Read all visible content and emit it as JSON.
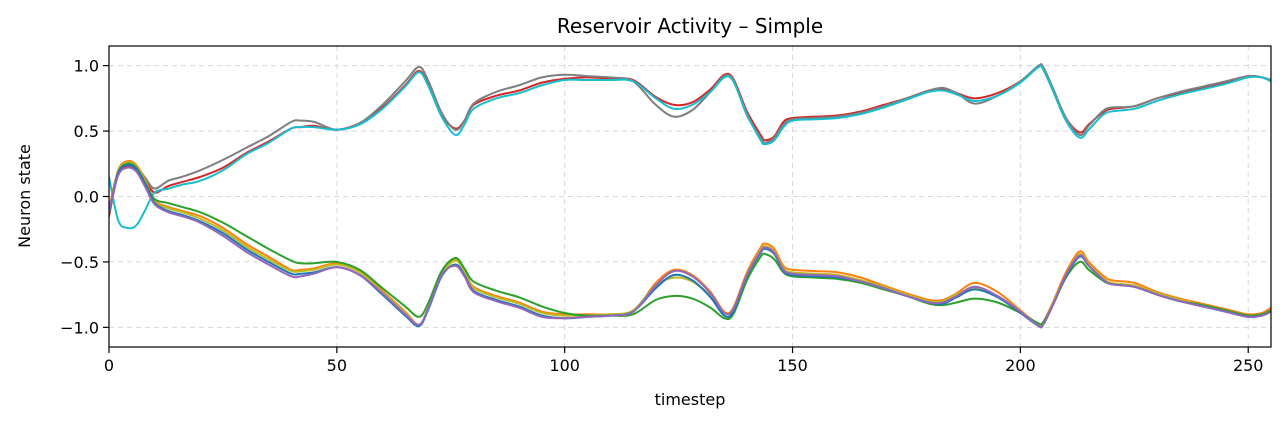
{
  "chart_data": {
    "type": "line",
    "title": "Reservoir Activity – Simple",
    "xlabel": "timestep",
    "ylabel": "Neuron state",
    "xlim": [
      0,
      255
    ],
    "ylim": [
      -1.15,
      1.15
    ],
    "xticks": [
      0,
      50,
      100,
      150,
      200,
      250
    ],
    "xtick_labels": [
      "0",
      "50",
      "100",
      "150",
      "200",
      "250"
    ],
    "yticks": [
      1.0,
      0.5,
      0.0,
      -0.5,
      -1.0
    ],
    "ytick_labels": [
      "1.0",
      "0.5",
      "0.0",
      "−0.5",
      "−1.0"
    ],
    "grid": true,
    "legend": "none",
    "x": [
      0,
      2,
      4,
      6,
      8,
      10,
      13,
      16,
      20,
      25,
      30,
      35,
      40,
      42,
      45,
      50,
      55,
      60,
      65,
      68,
      70,
      73,
      76,
      78,
      80,
      85,
      90,
      95,
      100,
      105,
      110,
      115,
      120,
      124,
      128,
      132,
      135,
      137,
      140,
      143,
      144,
      146,
      148,
      150,
      155,
      160,
      165,
      170,
      175,
      180,
      183,
      186,
      190,
      195,
      200,
      204,
      205,
      207,
      210,
      213,
      215,
      218,
      220,
      225,
      230,
      235,
      240,
      245,
      250,
      253,
      255
    ],
    "series": [
      {
        "color": "#d62728",
        "values": [
          -0.15,
          0.17,
          0.23,
          0.21,
          0.12,
          0.03,
          0.08,
          0.11,
          0.15,
          0.22,
          0.33,
          0.42,
          0.52,
          0.53,
          0.54,
          0.51,
          0.56,
          0.68,
          0.85,
          0.96,
          0.86,
          0.62,
          0.52,
          0.58,
          0.7,
          0.77,
          0.81,
          0.87,
          0.9,
          0.91,
          0.9,
          0.89,
          0.76,
          0.7,
          0.72,
          0.82,
          0.93,
          0.9,
          0.65,
          0.47,
          0.43,
          0.46,
          0.57,
          0.6,
          0.61,
          0.62,
          0.65,
          0.7,
          0.75,
          0.81,
          0.82,
          0.79,
          0.75,
          0.79,
          0.88,
          0.99,
          0.98,
          0.83,
          0.6,
          0.49,
          0.55,
          0.64,
          0.67,
          0.69,
          0.75,
          0.79,
          0.83,
          0.87,
          0.92,
          0.91,
          0.88
        ]
      },
      {
        "color": "#7f7f7f",
        "values": [
          -0.13,
          0.18,
          0.25,
          0.23,
          0.14,
          0.06,
          0.12,
          0.15,
          0.2,
          0.28,
          0.37,
          0.46,
          0.57,
          0.58,
          0.57,
          0.51,
          0.56,
          0.7,
          0.88,
          0.99,
          0.89,
          0.64,
          0.51,
          0.58,
          0.71,
          0.8,
          0.85,
          0.91,
          0.93,
          0.92,
          0.91,
          0.88,
          0.7,
          0.61,
          0.66,
          0.8,
          0.92,
          0.89,
          0.62,
          0.45,
          0.41,
          0.45,
          0.55,
          0.59,
          0.6,
          0.61,
          0.64,
          0.69,
          0.75,
          0.81,
          0.83,
          0.79,
          0.71,
          0.77,
          0.88,
          1.0,
          0.99,
          0.84,
          0.6,
          0.47,
          0.54,
          0.65,
          0.68,
          0.69,
          0.75,
          0.8,
          0.84,
          0.88,
          0.92,
          0.91,
          0.89
        ]
      },
      {
        "color": "#17becf",
        "values": [
          0.15,
          -0.18,
          -0.24,
          -0.22,
          -0.1,
          0.03,
          0.06,
          0.09,
          0.12,
          0.2,
          0.32,
          0.41,
          0.52,
          0.53,
          0.53,
          0.51,
          0.55,
          0.67,
          0.84,
          0.95,
          0.85,
          0.61,
          0.47,
          0.55,
          0.67,
          0.75,
          0.79,
          0.85,
          0.89,
          0.89,
          0.89,
          0.88,
          0.75,
          0.67,
          0.7,
          0.8,
          0.91,
          0.88,
          0.63,
          0.43,
          0.4,
          0.43,
          0.53,
          0.58,
          0.59,
          0.6,
          0.63,
          0.68,
          0.74,
          0.8,
          0.81,
          0.78,
          0.73,
          0.77,
          0.87,
          0.99,
          0.97,
          0.82,
          0.58,
          0.45,
          0.51,
          0.62,
          0.65,
          0.67,
          0.73,
          0.78,
          0.82,
          0.86,
          0.91,
          0.91,
          0.88
        ]
      },
      {
        "color": "#ff7f0e",
        "values": [
          -0.1,
          0.2,
          0.27,
          0.24,
          0.12,
          -0.03,
          -0.08,
          -0.11,
          -0.15,
          -0.24,
          -0.36,
          -0.46,
          -0.56,
          -0.56,
          -0.55,
          -0.51,
          -0.57,
          -0.72,
          -0.88,
          -0.98,
          -0.86,
          -0.6,
          -0.48,
          -0.57,
          -0.69,
          -0.76,
          -0.81,
          -0.88,
          -0.9,
          -0.9,
          -0.9,
          -0.88,
          -0.66,
          -0.56,
          -0.6,
          -0.73,
          -0.88,
          -0.85,
          -0.58,
          -0.39,
          -0.36,
          -0.4,
          -0.53,
          -0.56,
          -0.57,
          -0.58,
          -0.62,
          -0.68,
          -0.74,
          -0.79,
          -0.79,
          -0.74,
          -0.66,
          -0.73,
          -0.87,
          -0.98,
          -0.96,
          -0.82,
          -0.58,
          -0.42,
          -0.5,
          -0.6,
          -0.64,
          -0.66,
          -0.73,
          -0.78,
          -0.82,
          -0.86,
          -0.9,
          -0.89,
          -0.85
        ]
      },
      {
        "color": "#bcbd22",
        "values": [
          -0.11,
          0.19,
          0.26,
          0.23,
          0.11,
          -0.04,
          -0.09,
          -0.12,
          -0.17,
          -0.26,
          -0.38,
          -0.48,
          -0.57,
          -0.57,
          -0.56,
          -0.52,
          -0.58,
          -0.73,
          -0.89,
          -0.98,
          -0.86,
          -0.6,
          -0.49,
          -0.58,
          -0.7,
          -0.77,
          -0.82,
          -0.89,
          -0.91,
          -0.91,
          -0.9,
          -0.87,
          -0.68,
          -0.62,
          -0.65,
          -0.76,
          -0.89,
          -0.86,
          -0.6,
          -0.41,
          -0.38,
          -0.42,
          -0.55,
          -0.58,
          -0.59,
          -0.6,
          -0.64,
          -0.69,
          -0.75,
          -0.8,
          -0.8,
          -0.75,
          -0.7,
          -0.76,
          -0.88,
          -0.98,
          -0.97,
          -0.83,
          -0.6,
          -0.44,
          -0.52,
          -0.62,
          -0.66,
          -0.68,
          -0.74,
          -0.79,
          -0.83,
          -0.87,
          -0.91,
          -0.9,
          -0.87
        ]
      },
      {
        "color": "#2ca02c",
        "values": [
          -0.12,
          0.18,
          0.25,
          0.22,
          0.1,
          -0.02,
          -0.05,
          -0.08,
          -0.12,
          -0.2,
          -0.3,
          -0.4,
          -0.49,
          -0.51,
          -0.51,
          -0.5,
          -0.56,
          -0.7,
          -0.84,
          -0.92,
          -0.82,
          -0.57,
          -0.47,
          -0.55,
          -0.65,
          -0.72,
          -0.77,
          -0.84,
          -0.89,
          -0.91,
          -0.91,
          -0.9,
          -0.79,
          -0.76,
          -0.78,
          -0.85,
          -0.93,
          -0.9,
          -0.64,
          -0.46,
          -0.44,
          -0.48,
          -0.58,
          -0.61,
          -0.62,
          -0.63,
          -0.66,
          -0.71,
          -0.76,
          -0.82,
          -0.83,
          -0.81,
          -0.78,
          -0.81,
          -0.89,
          -0.97,
          -0.96,
          -0.84,
          -0.62,
          -0.5,
          -0.56,
          -0.64,
          -0.67,
          -0.69,
          -0.75,
          -0.8,
          -0.83,
          -0.87,
          -0.91,
          -0.9,
          -0.87
        ]
      },
      {
        "color": "#1f77b4",
        "values": [
          -0.12,
          0.18,
          0.24,
          0.21,
          0.09,
          -0.05,
          -0.11,
          -0.14,
          -0.19,
          -0.28,
          -0.4,
          -0.5,
          -0.59,
          -0.59,
          -0.58,
          -0.54,
          -0.6,
          -0.75,
          -0.91,
          -0.99,
          -0.87,
          -0.61,
          -0.52,
          -0.6,
          -0.72,
          -0.79,
          -0.84,
          -0.91,
          -0.93,
          -0.92,
          -0.91,
          -0.88,
          -0.7,
          -0.6,
          -0.64,
          -0.77,
          -0.91,
          -0.88,
          -0.61,
          -0.43,
          -0.4,
          -0.44,
          -0.57,
          -0.6,
          -0.61,
          -0.62,
          -0.65,
          -0.7,
          -0.76,
          -0.81,
          -0.82,
          -0.77,
          -0.71,
          -0.77,
          -0.89,
          -0.99,
          -0.98,
          -0.84,
          -0.61,
          -0.46,
          -0.53,
          -0.63,
          -0.67,
          -0.69,
          -0.75,
          -0.8,
          -0.84,
          -0.88,
          -0.92,
          -0.91,
          -0.88
        ]
      },
      {
        "color": "#9467bd",
        "values": [
          -0.11,
          0.16,
          0.22,
          0.19,
          0.07,
          -0.06,
          -0.12,
          -0.15,
          -0.2,
          -0.3,
          -0.42,
          -0.52,
          -0.61,
          -0.61,
          -0.59,
          -0.54,
          -0.6,
          -0.74,
          -0.9,
          -0.98,
          -0.86,
          -0.6,
          -0.53,
          -0.61,
          -0.73,
          -0.8,
          -0.85,
          -0.92,
          -0.93,
          -0.92,
          -0.91,
          -0.88,
          -0.68,
          -0.57,
          -0.61,
          -0.74,
          -0.89,
          -0.86,
          -0.6,
          -0.42,
          -0.39,
          -0.43,
          -0.56,
          -0.59,
          -0.6,
          -0.61,
          -0.65,
          -0.7,
          -0.76,
          -0.81,
          -0.81,
          -0.76,
          -0.69,
          -0.76,
          -0.88,
          -0.99,
          -0.98,
          -0.84,
          -0.6,
          -0.45,
          -0.53,
          -0.63,
          -0.67,
          -0.69,
          -0.75,
          -0.8,
          -0.84,
          -0.88,
          -0.92,
          -0.91,
          -0.88
        ]
      }
    ]
  }
}
